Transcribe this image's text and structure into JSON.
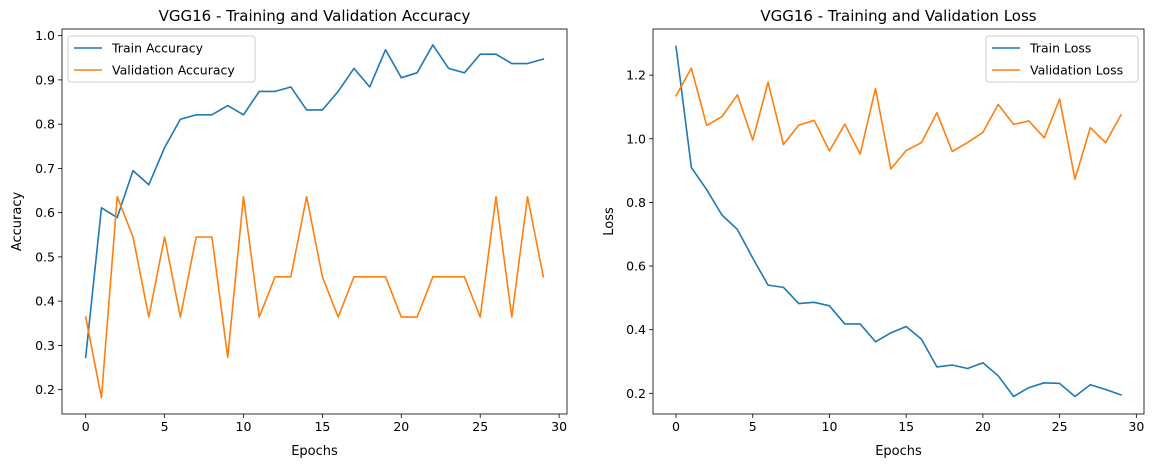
{
  "chart_data": [
    {
      "type": "line",
      "title": "VGG16 - Training and Validation Accuracy",
      "xlabel": "Epochs",
      "ylabel": "Accuracy",
      "xlim": [
        -1.5,
        30.5
      ],
      "ylim": [
        0.145,
        1.015
      ],
      "xticks": [
        0,
        5,
        10,
        15,
        20,
        25,
        30
      ],
      "yticks": [
        0.2,
        0.3,
        0.4,
        0.5,
        0.6,
        0.7,
        0.8,
        0.9,
        1.0
      ],
      "ytick_labels": [
        "0.2",
        "0.3",
        "0.4",
        "0.5",
        "0.6",
        "0.7",
        "0.8",
        "0.9",
        "1.0"
      ],
      "legend_position": "upper-left",
      "x": [
        0,
        1,
        2,
        3,
        4,
        5,
        6,
        7,
        8,
        9,
        10,
        11,
        12,
        13,
        14,
        15,
        16,
        17,
        18,
        19,
        20,
        21,
        22,
        23,
        24,
        25,
        26,
        27,
        28,
        29
      ],
      "series": [
        {
          "name": "Train Accuracy",
          "color": "#1f77b4",
          "values": [
            0.273,
            0.611,
            0.589,
            0.695,
            0.663,
            0.747,
            0.811,
            0.821,
            0.821,
            0.842,
            0.821,
            0.874,
            0.874,
            0.884,
            0.832,
            0.832,
            0.874,
            0.926,
            0.884,
            0.968,
            0.905,
            0.916,
            0.979,
            0.926,
            0.916,
            0.958,
            0.958,
            0.937,
            0.937,
            0.947
          ]
        },
        {
          "name": "Validation Accuracy",
          "color": "#ff7f0e",
          "values": [
            0.364,
            0.182,
            0.636,
            0.545,
            0.364,
            0.545,
            0.364,
            0.545,
            0.545,
            0.273,
            0.636,
            0.364,
            0.455,
            0.455,
            0.636,
            0.455,
            0.364,
            0.455,
            0.455,
            0.455,
            0.364,
            0.364,
            0.455,
            0.455,
            0.455,
            0.364,
            0.636,
            0.364,
            0.636,
            0.455
          ]
        }
      ]
    },
    {
      "type": "line",
      "title": "VGG16 - Training and Validation Loss",
      "xlabel": "Epochs",
      "ylabel": "Loss",
      "xlim": [
        -1.5,
        30.5
      ],
      "ylim": [
        0.135,
        1.345
      ],
      "xticks": [
        0,
        5,
        10,
        15,
        20,
        25,
        30
      ],
      "yticks": [
        0.2,
        0.4,
        0.6,
        0.8,
        1.0,
        1.2
      ],
      "ytick_labels": [
        "0.2",
        "0.4",
        "0.6",
        "0.8",
        "1.0",
        "1.2"
      ],
      "legend_position": "upper-right",
      "x": [
        0,
        1,
        2,
        3,
        4,
        5,
        6,
        7,
        8,
        9,
        10,
        11,
        12,
        13,
        14,
        15,
        16,
        17,
        18,
        19,
        20,
        21,
        22,
        23,
        24,
        25,
        26,
        27,
        28,
        29
      ],
      "series": [
        {
          "name": "Train Loss",
          "color": "#1f77b4",
          "values": [
            1.29,
            0.91,
            0.84,
            0.76,
            0.715,
            0.625,
            0.54,
            0.533,
            0.482,
            0.486,
            0.475,
            0.418,
            0.418,
            0.362,
            0.39,
            0.41,
            0.37,
            0.283,
            0.289,
            0.278,
            0.296,
            0.255,
            0.19,
            0.218,
            0.233,
            0.231,
            0.19,
            0.227,
            0.212,
            0.195
          ]
        },
        {
          "name": "Validation Loss",
          "color": "#ff7f0e",
          "values": [
            1.135,
            1.222,
            1.042,
            1.07,
            1.138,
            0.996,
            1.178,
            0.982,
            1.043,
            1.058,
            0.962,
            1.046,
            0.952,
            1.158,
            0.905,
            0.963,
            0.988,
            1.082,
            0.96,
            0.988,
            1.02,
            1.108,
            1.045,
            1.056,
            1.003,
            1.125,
            0.873,
            1.035,
            0.988,
            1.075
          ]
        }
      ]
    }
  ]
}
